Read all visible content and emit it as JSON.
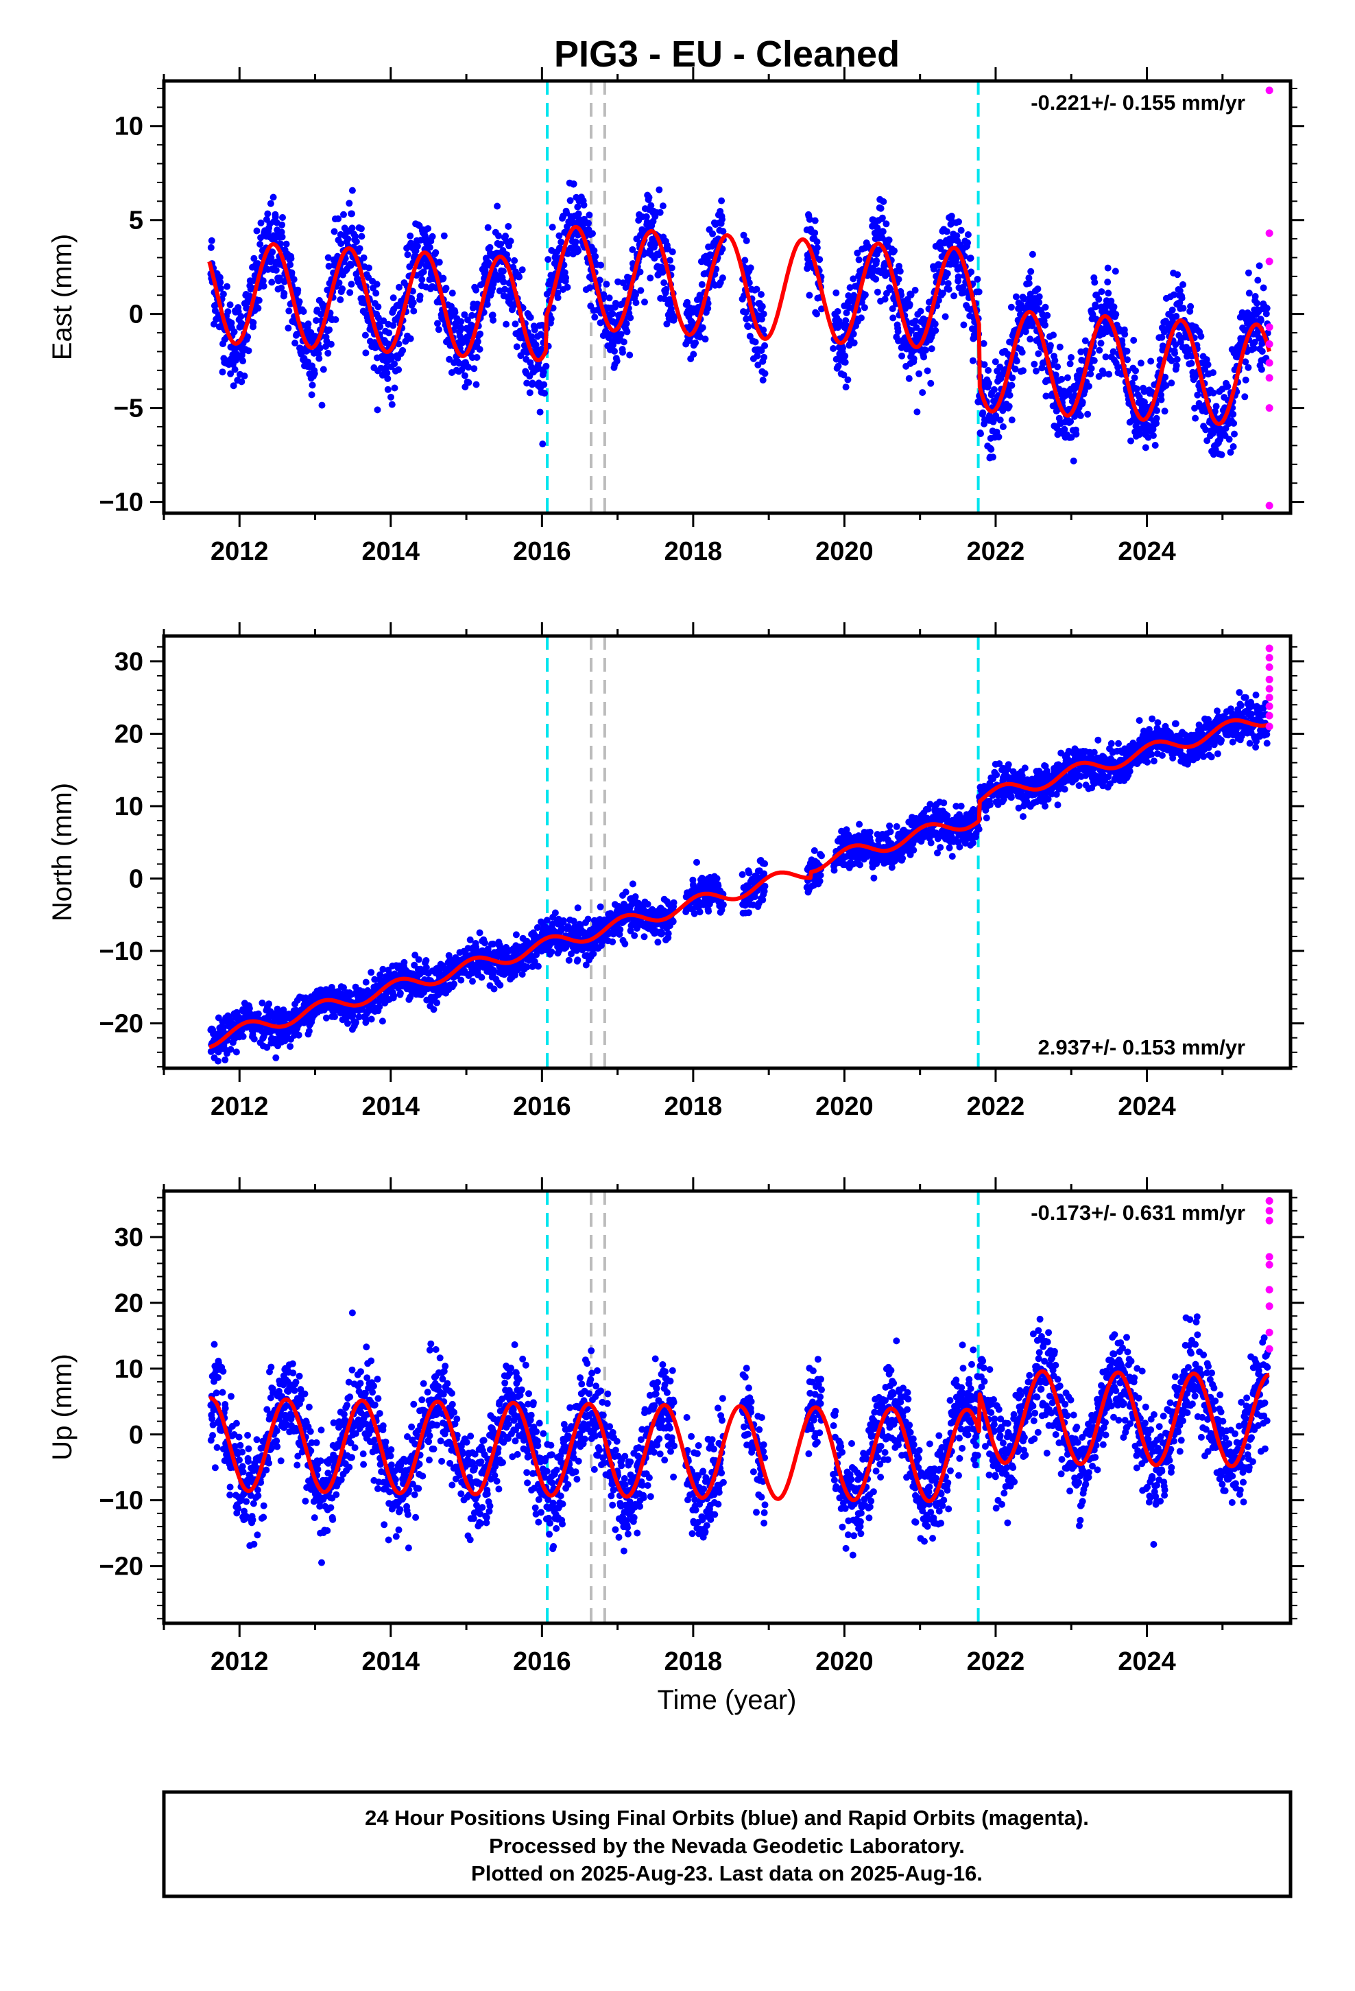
{
  "title": "PIG3  - EU - Cleaned",
  "xlabel": "Time (year)",
  "footer": [
    "24 Hour Positions Using Final Orbits (blue) and Rapid Orbits (magenta).",
    "Processed by the Nevada Geodetic Laboratory.",
    "Plotted on 2025-Aug-23. Last data on 2025-Aug-16."
  ],
  "colors": {
    "final_points": "#0000ff",
    "rapid_points": "#ff00ff",
    "model_fit": "#ff0000",
    "equipment_change": "#00e5ee",
    "other_event": "#bbbbbb",
    "frame": "#000000"
  },
  "chart_data": [
    {
      "type": "scatter",
      "component": "East",
      "ylabel": "East (mm)",
      "rate_text": "-0.221+/- 0.155 mm/yr",
      "rate_position": "top-right",
      "xlim": [
        2011.0,
        2025.9
      ],
      "ylim": [
        -10.6,
        12.4
      ],
      "xticks": [
        2012,
        2014,
        2016,
        2018,
        2020,
        2022,
        2024
      ],
      "yticks": [
        -10,
        -5,
        0,
        5,
        10
      ],
      "data_gaps": [
        [
          2017.75,
          2017.9
        ],
        [
          2018.4,
          2018.65
        ],
        [
          2018.95,
          2019.5
        ],
        [
          2019.7,
          2019.85
        ]
      ],
      "model": {
        "trend_mm_per_yr": -0.221,
        "offset_at_2011.6": 1.2,
        "annual_amplitude_mm": 2.7,
        "annual_peak_fraction": 0.45,
        "steps": [
          {
            "year": 2016.05,
            "step_mm": 1.8
          },
          {
            "year": 2021.78,
            "step_mm": -3.2
          }
        ]
      },
      "scatter_noise_mm": 1.15,
      "rapid_points_y": [
        11.9,
        4.3,
        2.8,
        -0.7,
        -1.6,
        -2.6,
        -3.4,
        -5.0,
        -10.2
      ],
      "events": [
        {
          "year": 2016.07,
          "type": "equipment"
        },
        {
          "year": 2016.65,
          "type": "other"
        },
        {
          "year": 2016.83,
          "type": "other"
        },
        {
          "year": 2021.77,
          "type": "equipment"
        }
      ]
    },
    {
      "type": "scatter",
      "component": "North",
      "ylabel": "North (mm)",
      "rate_text": "2.937+/- 0.153 mm/yr",
      "rate_position": "bottom-right",
      "xlim": [
        2011.0,
        2025.9
      ],
      "ylim": [
        -26.2,
        33.5
      ],
      "xticks": [
        2012,
        2014,
        2016,
        2018,
        2020,
        2022,
        2024
      ],
      "yticks": [
        -20,
        -10,
        0,
        10,
        20,
        30
      ],
      "data_gaps": [
        [
          2017.75,
          2017.9
        ],
        [
          2018.4,
          2018.65
        ],
        [
          2018.95,
          2019.5
        ],
        [
          2019.7,
          2019.85
        ]
      ],
      "model": {
        "trend_mm_per_yr": 2.937,
        "offset_at_2011.6": -22.3,
        "annual_amplitude_mm": 1.0,
        "annual_peak_fraction": 0.1,
        "steps": [
          {
            "year": 2019.55,
            "step_mm": 0.8
          },
          {
            "year": 2021.78,
            "step_mm": 2.6
          }
        ]
      },
      "scatter_noise_mm": 1.3,
      "rapid_points_y": [
        31.8,
        30.5,
        29.2,
        27.5,
        26.2,
        25.0,
        23.8,
        22.5,
        21.0
      ],
      "events": [
        {
          "year": 2016.07,
          "type": "equipment"
        },
        {
          "year": 2016.65,
          "type": "other"
        },
        {
          "year": 2016.83,
          "type": "other"
        },
        {
          "year": 2021.77,
          "type": "equipment"
        }
      ]
    },
    {
      "type": "scatter",
      "component": "Up",
      "ylabel": "Up (mm)",
      "rate_text": "-0.173+/- 0.631 mm/yr",
      "rate_position": "top-right",
      "xlim": [
        2011.0,
        2025.9
      ],
      "ylim": [
        -28.7,
        37.0
      ],
      "xticks": [
        2012,
        2014,
        2016,
        2018,
        2020,
        2022,
        2024
      ],
      "yticks": [
        -20,
        -10,
        0,
        10,
        20,
        30
      ],
      "data_gaps": [
        [
          2017.75,
          2017.9
        ],
        [
          2018.4,
          2018.65
        ],
        [
          2018.95,
          2019.5
        ],
        [
          2019.7,
          2019.85
        ]
      ],
      "model": {
        "trend_mm_per_yr": -0.173,
        "offset_at_2011.6": -1.5,
        "annual_amplitude_mm": 7.0,
        "annual_peak_fraction": 0.62,
        "steps": [
          {
            "year": 2021.78,
            "step_mm": 6.0
          }
        ]
      },
      "scatter_noise_mm": 3.6,
      "rapid_points_y": [
        35.5,
        34.0,
        32.5,
        27.0,
        25.8,
        22.0,
        19.5,
        15.5,
        13.0
      ],
      "events": [
        {
          "year": 2016.07,
          "type": "equipment"
        },
        {
          "year": 2016.65,
          "type": "other"
        },
        {
          "year": 2016.83,
          "type": "other"
        },
        {
          "year": 2021.77,
          "type": "equipment"
        }
      ]
    }
  ]
}
